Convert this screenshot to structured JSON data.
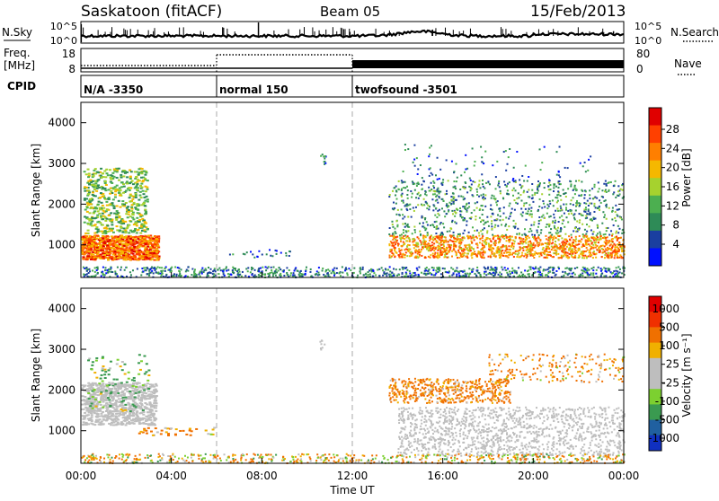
{
  "header": {
    "station": "Saskatoon (fitACF)",
    "beam": "Beam 05",
    "date": "15/Feb/2013"
  },
  "noise_panel": {
    "left_label": "N.Sky",
    "right_label": "N.Search",
    "left_ticks": [
      "10^5",
      "10^0"
    ],
    "right_ticks": [
      "10^5",
      "10^0"
    ]
  },
  "freq_panel": {
    "left_label_line1": "Freq.",
    "left_label_line2": "[MHz]",
    "right_label": "Nave",
    "left_ticks": [
      "18",
      "8"
    ],
    "right_ticks": [
      "80",
      "0"
    ]
  },
  "cpid_panel": {
    "label": "CPID",
    "segments": [
      {
        "label": "N/A -3350",
        "start_hour": 0,
        "end_hour": 6
      },
      {
        "label": "normal 150",
        "start_hour": 6,
        "end_hour": 12
      },
      {
        "label": "twofsound -3501",
        "start_hour": 12,
        "end_hour": 24
      }
    ]
  },
  "x_axis": {
    "label": "Time UT",
    "ticks": [
      "00:00",
      "04:00",
      "08:00",
      "12:00",
      "16:00",
      "20:00",
      "00:00"
    ],
    "tick_hours": [
      0,
      4,
      8,
      12,
      16,
      20,
      24
    ]
  },
  "power_panel": {
    "ylabel": "Slant Range [km]",
    "yticks": [
      "4000",
      "3000",
      "2000",
      "1000"
    ],
    "colorbar_label": "Power [dB]",
    "colorbar_ticks": [
      "28",
      "24",
      "20",
      "16",
      "12",
      "8",
      "4"
    ]
  },
  "velocity_panel": {
    "ylabel": "Slant Range [km]",
    "yticks": [
      "4000",
      "3000",
      "2000",
      "1000"
    ],
    "colorbar_label": "Velocity [m s⁻¹]",
    "colorbar_ticks": [
      "1000",
      "500",
      "100",
      "25",
      "-25",
      "-100",
      "-500",
      "-1000"
    ]
  },
  "colors": {
    "power_scale": [
      "#0010ff",
      "#1a3fa0",
      "#2e8b57",
      "#4caf50",
      "#a6d22e",
      "#f5b800",
      "#ff7f00",
      "#ff4000",
      "#e00000"
    ],
    "velocity_scale": [
      "#1030c0",
      "#2060a0",
      "#3a9a50",
      "#7cd030",
      "#bebebe",
      "#bebebe",
      "#f0b000",
      "#f07000",
      "#f03000",
      "#e00000"
    ],
    "velocity_ground": "#bebebe"
  },
  "chart_data": [
    {
      "type": "heatmap",
      "title": "",
      "quantity": "Power",
      "xlabel": "Time UT",
      "ylabel": "Slant Range [km]",
      "xlim_hours": [
        0,
        24
      ],
      "ylim_km": [
        200,
        4500
      ],
      "colorbar_label": "Power [dB]",
      "colorbar_range": [
        0,
        32
      ],
      "regions": [
        {
          "name": "early-band",
          "hours": [
            0.0,
            3.4
          ],
          "range_km": [
            600,
            1300
          ],
          "typical_db": 24
        },
        {
          "name": "early-upper",
          "hours": [
            0.0,
            3.0
          ],
          "range_km": [
            1500,
            2900
          ],
          "typical_db": 14
        },
        {
          "name": "ground-near-range",
          "hours": [
            0.0,
            24.0
          ],
          "range_km": [
            200,
            500
          ],
          "typical_db": 8
        },
        {
          "name": "late-band",
          "hours": [
            13.5,
            24.0
          ],
          "range_km": [
            700,
            1300
          ],
          "typical_db": 22
        },
        {
          "name": "late-upper",
          "hours": [
            13.5,
            24.0
          ],
          "range_km": [
            1300,
            2600
          ],
          "typical_db": 10
        }
      ]
    },
    {
      "type": "heatmap",
      "title": "",
      "quantity": "Velocity",
      "xlabel": "Time UT",
      "ylabel": "Slant Range [km]",
      "xlim_hours": [
        0,
        24
      ],
      "ylim_km": [
        200,
        4500
      ],
      "colorbar_label": "Velocity [m s⁻¹]",
      "colorbar_range": [
        -1000,
        1000
      ],
      "regions": [
        {
          "name": "early-ground",
          "hours": [
            0.0,
            3.4
          ],
          "range_km": [
            600,
            2200
          ],
          "typical_ms": 0
        },
        {
          "name": "late-ground",
          "hours": [
            14.0,
            24.0
          ],
          "range_km": [
            300,
            1600
          ],
          "typical_ms": 0
        },
        {
          "name": "late-ionospheric",
          "hours": [
            13.5,
            24.0
          ],
          "range_km": [
            1700,
            2900
          ],
          "typical_ms": -150
        },
        {
          "name": "near-range",
          "hours": [
            0.0,
            24.0
          ],
          "range_km": [
            200,
            450
          ],
          "typical_ms": -80
        }
      ]
    }
  ]
}
